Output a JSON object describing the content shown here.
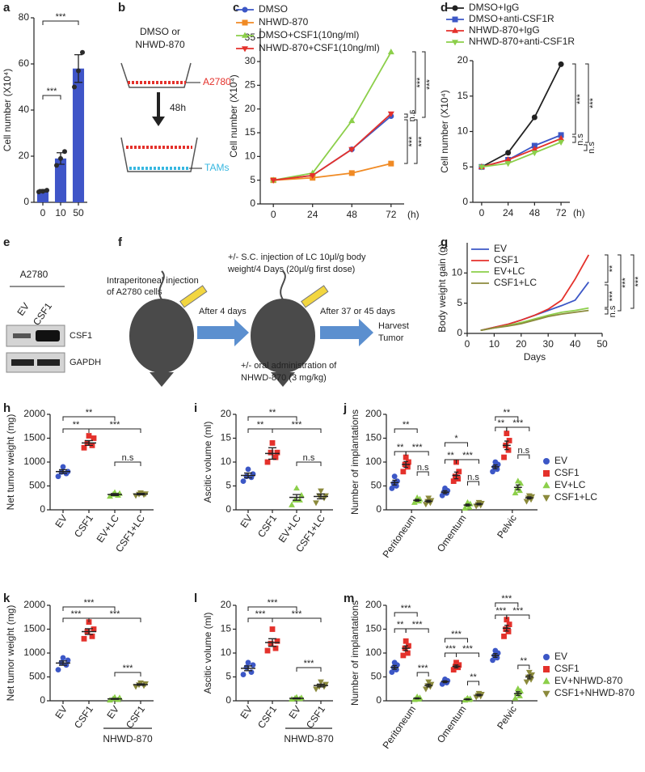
{
  "chart_data": [
    {
      "type": "bar",
      "label": "a",
      "ylabel": "Cell number (X10⁴)",
      "categories": [
        "0",
        "10",
        "50"
      ],
      "values": [
        5,
        19,
        58
      ],
      "errors": [
        0.5,
        2.5,
        6
      ],
      "points": [
        [
          4.5,
          4.8,
          5.2
        ],
        [
          16,
          19,
          22
        ],
        [
          50,
          57,
          65
        ]
      ],
      "color": "#3f55c8",
      "point_color": "#2b2b2b",
      "ylim": [
        0,
        80
      ],
      "yticks": [
        0,
        20,
        40,
        60,
        80
      ],
      "annotations": [
        "***",
        "***"
      ]
    },
    {
      "type": "line",
      "label": "c",
      "ylabel": "Cell number (X10⁴)",
      "xlabel": "(h)",
      "x": [
        0,
        24,
        48,
        72
      ],
      "xlim": [
        -8,
        80
      ],
      "xticks": [
        0,
        24,
        48,
        72
      ],
      "ylim": [
        0,
        37
      ],
      "yticks": [
        0,
        5,
        10,
        15,
        20,
        25,
        30,
        35
      ],
      "series": [
        {
          "name": "DMSO",
          "color": "#3c57c6",
          "marker": "circle",
          "values": [
            5,
            6,
            11.5,
            18.5
          ]
        },
        {
          "name": "NHWD-870",
          "color": "#f08a24",
          "marker": "square",
          "values": [
            5,
            5.5,
            6.5,
            8.5
          ]
        },
        {
          "name": "DMSO+CSF1(10ng/ml)",
          "color": "#8ccf4a",
          "marker": "triangle",
          "values": [
            5,
            6.5,
            17.5,
            32
          ]
        },
        {
          "name": "NHWD-870+CSF1(10ng/ml)",
          "color": "#e4312b",
          "marker": "triangle-down",
          "values": [
            5,
            6,
            11.5,
            19
          ]
        }
      ],
      "annotations": [
        "n.s",
        "***",
        "***",
        "***",
        "***"
      ]
    },
    {
      "type": "line",
      "label": "d",
      "ylabel": "Cell number (X10⁴)",
      "xlabel": "(h)",
      "x": [
        0,
        24,
        48,
        72
      ],
      "xlim": [
        -8,
        80
      ],
      "xticks": [
        0,
        24,
        48,
        72
      ],
      "ylim": [
        0,
        20
      ],
      "yticks": [
        0,
        5,
        10,
        15,
        20
      ],
      "series": [
        {
          "name": "DMSO+IgG",
          "color": "#222222",
          "marker": "circle",
          "values": [
            5,
            7,
            12,
            19.5
          ]
        },
        {
          "name": "DMSO+anti-CSF1R",
          "color": "#3c57c6",
          "marker": "square",
          "values": [
            5,
            6,
            8,
            9.5
          ]
        },
        {
          "name": "NHWD-870+IgG",
          "color": "#e4312b",
          "marker": "triangle",
          "values": [
            5,
            6,
            7.5,
            9
          ]
        },
        {
          "name": "NHWD-870+anti-CSF1R",
          "color": "#8ccf4a",
          "marker": "triangle-down",
          "values": [
            5,
            5.5,
            7,
            8.5
          ]
        }
      ],
      "annotations": [
        "***",
        "***",
        "n.s",
        "n.s"
      ]
    },
    {
      "type": "line",
      "label": "g",
      "ylabel": "Body weight gain (g)",
      "xlabel": "Days",
      "x": [
        5,
        10,
        15,
        20,
        25,
        30,
        35,
        40,
        45
      ],
      "xlim": [
        0,
        50
      ],
      "xticks": [
        0,
        10,
        20,
        30,
        40,
        50
      ],
      "ylim": [
        0,
        15
      ],
      "yticks": [
        0,
        5,
        10
      ],
      "series": [
        {
          "name": "EV",
          "color": "#3c57c6",
          "values": [
            0.5,
            1,
            1.5,
            2.2,
            3,
            3.8,
            4.6,
            5.5,
            8.5
          ]
        },
        {
          "name": "CSF1",
          "color": "#e4312b",
          "values": [
            0.5,
            1,
            1.5,
            2.2,
            3,
            4,
            5.5,
            9,
            13
          ]
        },
        {
          "name": "EV+LC",
          "color": "#8ccf4a",
          "values": [
            0.5,
            0.9,
            1.3,
            1.8,
            2.4,
            3,
            3.5,
            3.8,
            4.2
          ]
        },
        {
          "name": "CSF1+LC",
          "color": "#8b8a3c",
          "values": [
            0.5,
            0.9,
            1.2,
            1.6,
            2.2,
            2.8,
            3.2,
            3.5,
            3.8
          ]
        }
      ],
      "annotations": [
        "**",
        "***",
        "***",
        "***",
        "n.s"
      ]
    },
    {
      "type": "dot",
      "label": "h",
      "ylabel": "Net tumor weight (mg)",
      "categories": [
        "EV",
        "CSF1",
        "EV+LC",
        "CSF1+LC"
      ],
      "colors": [
        "#3c57c6",
        "#e4312b",
        "#8ccf4a",
        "#8b8a3c"
      ],
      "markers": [
        "circle",
        "square",
        "triangle",
        "triangle-down"
      ],
      "values": [
        800,
        1400,
        320,
        330
      ],
      "errors": [
        40,
        50,
        20,
        15
      ],
      "points": [
        [
          700,
          760,
          790,
          800,
          900
        ],
        [
          1300,
          1350,
          1400,
          1500,
          1550
        ],
        [
          280,
          300,
          320,
          340,
          360
        ],
        [
          300,
          320,
          330,
          340,
          360
        ]
      ],
      "ylim": [
        0,
        2000
      ],
      "yticks": [
        0,
        500,
        1000,
        1500,
        2000
      ],
      "annotations": [
        "**",
        "**",
        "***",
        "n.s"
      ]
    },
    {
      "type": "dot",
      "label": "i",
      "ylabel": "Ascitic volume (ml)",
      "categories": [
        "EV",
        "CSF1",
        "EV+LC",
        "CSF1+LC"
      ],
      "colors": [
        "#3c57c6",
        "#e4312b",
        "#8ccf4a",
        "#8b8a3c"
      ],
      "markers": [
        "circle",
        "square",
        "triangle",
        "triangle-down"
      ],
      "values": [
        7.2,
        11.8,
        2.6,
        2.8
      ],
      "errors": [
        0.5,
        1.2,
        0.6,
        0.5
      ],
      "points": [
        [
          6,
          6.8,
          7,
          7.5,
          8.5
        ],
        [
          10,
          11,
          12,
          12,
          14
        ],
        [
          1,
          2,
          2,
          3,
          4.5
        ],
        [
          1.5,
          2.5,
          3,
          3,
          4
        ]
      ],
      "ylim": [
        0,
        20
      ],
      "yticks": [
        0,
        5,
        10,
        15,
        20
      ],
      "annotations": [
        "**",
        "**",
        "***",
        "n.s"
      ]
    },
    {
      "type": "dot",
      "label": "j",
      "ylabel": "Number of implantations",
      "categories": [
        "Peritoneum",
        "Omentum",
        "Pelvic"
      ],
      "ylim": [
        0,
        200
      ],
      "yticks": [
        0,
        50,
        100,
        150,
        200
      ],
      "series": [
        {
          "name": "EV",
          "color": "#3c57c6",
          "marker": "circle",
          "values": [
            57,
            37,
            90
          ],
          "errors": [
            5,
            3,
            4
          ],
          "points": [
            [
              45,
              50,
              55,
              60,
              70
            ],
            [
              30,
              35,
              38,
              40,
              45
            ],
            [
              80,
              85,
              90,
              95,
              100
            ]
          ]
        },
        {
          "name": "CSF1",
          "color": "#e4312b",
          "marker": "square",
          "values": [
            95,
            72,
            135
          ],
          "errors": [
            6,
            7,
            9
          ],
          "points": [
            [
              80,
              90,
              95,
              100,
              110
            ],
            [
              60,
              65,
              70,
              80,
              100
            ],
            [
              110,
              125,
              135,
              145,
              160
            ]
          ]
        },
        {
          "name": "EV+LC",
          "color": "#8ccf4a",
          "marker": "triangle",
          "values": [
            20,
            10,
            47
          ],
          "errors": [
            2,
            2,
            5
          ],
          "points": [
            [
              15,
              18,
              20,
              22,
              25
            ],
            [
              3,
              5,
              10,
              12,
              15
            ],
            [
              35,
              40,
              45,
              55,
              60
            ]
          ]
        },
        {
          "name": "CSF1+LC",
          "color": "#8b8a3c",
          "marker": "triangle-down",
          "values": [
            18,
            12,
            25
          ],
          "errors": [
            2,
            1.5,
            2
          ],
          "points": [
            [
              12,
              15,
              18,
              20,
              25
            ],
            [
              8,
              10,
              12,
              14,
              16
            ],
            [
              18,
              22,
              25,
              28,
              30
            ]
          ]
        }
      ],
      "annotations": [
        "**",
        "**",
        "***",
        "n.s",
        "*",
        "**",
        "***",
        "n.s",
        "**",
        "**",
        "***",
        "n.s"
      ]
    },
    {
      "type": "dot",
      "label": "k",
      "ylabel": "Net tumor weight (mg)",
      "categories": [
        "EV",
        "CSF1",
        "EV",
        "CSF1"
      ],
      "group_label": "NHWD-870",
      "colors": [
        "#3c57c6",
        "#e4312b",
        "#8ccf4a",
        "#8b8a3c"
      ],
      "markers": [
        "circle",
        "square",
        "triangle",
        "triangle-down"
      ],
      "values": [
        790,
        1450,
        40,
        340
      ],
      "errors": [
        45,
        60,
        10,
        15
      ],
      "points": [
        [
          650,
          750,
          800,
          850,
          900
        ],
        [
          1300,
          1350,
          1450,
          1500,
          1650
        ],
        [
          10,
          20,
          40,
          60,
          70
        ],
        [
          300,
          320,
          340,
          360,
          380
        ]
      ],
      "ylim": [
        0,
        2000
      ],
      "yticks": [
        0,
        500,
        1000,
        1500,
        2000
      ],
      "annotations": [
        "***",
        "***",
        "***",
        "***"
      ]
    },
    {
      "type": "dot",
      "label": "l",
      "ylabel": "Ascitic volume (ml)",
      "categories": [
        "EV",
        "CSF1",
        "EV",
        "CSF1"
      ],
      "group_label": "NHWD-870",
      "colors": [
        "#3c57c6",
        "#e4312b",
        "#8ccf4a",
        "#8b8a3c"
      ],
      "markers": [
        "circle",
        "square",
        "triangle",
        "triangle-down"
      ],
      "values": [
        6.8,
        12.2,
        0.5,
        3.2
      ],
      "errors": [
        0.5,
        0.8,
        0.1,
        0.3
      ],
      "points": [
        [
          5.5,
          6,
          7,
          7.5,
          8
        ],
        [
          10.5,
          11,
          12,
          12.5,
          15
        ],
        [
          0.3,
          0.4,
          0.5,
          0.6,
          0.7
        ],
        [
          2.5,
          3,
          3,
          3.5,
          4
        ]
      ],
      "ylim": [
        0,
        20
      ],
      "yticks": [
        0,
        5,
        10,
        15,
        20
      ],
      "annotations": [
        "***",
        "***",
        "***",
        "***"
      ]
    },
    {
      "type": "dot",
      "label": "m",
      "ylabel": "Number of implantations",
      "categories": [
        "Peritoneum",
        "Omentum",
        "Pelvic"
      ],
      "ylim": [
        0,
        200
      ],
      "yticks": [
        0,
        50,
        100,
        150,
        200
      ],
      "series": [
        {
          "name": "EV",
          "color": "#3c57c6",
          "marker": "circle",
          "values": [
            70,
            40,
            95
          ],
          "errors": [
            4,
            2,
            4
          ],
          "points": [
            [
              60,
              65,
              70,
              75,
              80
            ],
            [
              35,
              38,
              40,
              42,
              45
            ],
            [
              85,
              90,
              95,
              100,
              105
            ]
          ]
        },
        {
          "name": "CSF1",
          "color": "#e4312b",
          "marker": "square",
          "values": [
            110,
            72,
            152
          ],
          "errors": [
            5,
            3,
            6
          ],
          "points": [
            [
              95,
              100,
              110,
              115,
              125
            ],
            [
              65,
              70,
              72,
              75,
              80
            ],
            [
              135,
              145,
              150,
              160,
              170
            ]
          ]
        },
        {
          "name": "EV+NHWD-870",
          "color": "#8ccf4a",
          "marker": "triangle",
          "values": [
            5,
            3,
            15
          ],
          "errors": [
            1,
            1,
            4
          ],
          "points": [
            [
              2,
              3,
              5,
              6,
              8
            ],
            [
              1,
              2,
              3,
              4,
              5
            ],
            [
              5,
              10,
              15,
              20,
              25
            ]
          ]
        },
        {
          "name": "CSF1+NHWD-870",
          "color": "#8b8a3c",
          "marker": "triangle-down",
          "values": [
            32,
            12,
            50
          ],
          "errors": [
            3,
            1.5,
            4
          ],
          "points": [
            [
              25,
              30,
              32,
              35,
              40
            ],
            [
              8,
              10,
              12,
              14,
              16
            ],
            [
              40,
              45,
              50,
              55,
              60
            ]
          ]
        }
      ],
      "annotations": [
        "***",
        "**",
        "***",
        "***",
        "***",
        "***",
        "***",
        "**",
        "***",
        "***",
        "***",
        "**"
      ]
    }
  ],
  "panel_b": {
    "label": "b",
    "treatment": [
      "DMSO or",
      "NHWD-870"
    ],
    "top_cells": "A2780",
    "time": "48h",
    "bottom_cells": "TAMs"
  },
  "panel_e": {
    "label": "e",
    "cell_line": "A2780",
    "lanes": [
      "EV",
      "CSF1"
    ],
    "bands": [
      "CSF1",
      "GAPDH"
    ]
  },
  "panel_f": {
    "label": "f",
    "step1": [
      "Intraperitoneal injection",
      "of A2780 cells"
    ],
    "arrow1": "After 4 days",
    "treat_top": [
      "+/- S.C. injection of LC 10μl/g body",
      "weight/4 Days (20μl/g first dose)"
    ],
    "arrow2": "After 37 or 45 days",
    "treat_bottom": [
      "+/- oral administration of",
      "NHWD-870 (3 mg/kg)"
    ],
    "end": [
      "Harvest",
      "Tumor"
    ]
  }
}
